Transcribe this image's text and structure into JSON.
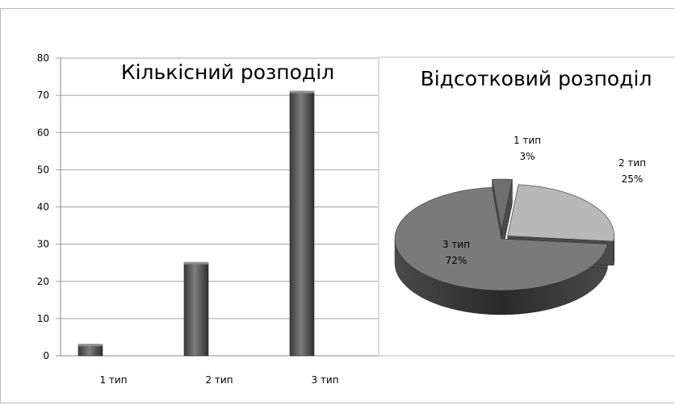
{
  "left_chart": {
    "chart_data": {
      "type": "bar",
      "title": "Кількісний розподіл",
      "categories": [
        "1 тип",
        "2 тип",
        "3 тип"
      ],
      "values": [
        3,
        25,
        71
      ],
      "ylim": [
        0,
        80
      ],
      "yticks": [
        0,
        10,
        20,
        30,
        40,
        50,
        60,
        70,
        80
      ],
      "grid": true,
      "bar_color": "#555555"
    }
  },
  "right_chart": {
    "chart_data": {
      "type": "pie",
      "title": "Відсотковий розподіл",
      "labels": [
        "1 тип",
        "2 тип",
        "3 тип"
      ],
      "values": [
        3,
        25,
        72
      ],
      "value_labels": [
        "3%",
        "25%",
        "72%"
      ],
      "colors": [
        "#6f6f6f",
        "#b8b8b8",
        "#7a7a7a"
      ]
    }
  }
}
